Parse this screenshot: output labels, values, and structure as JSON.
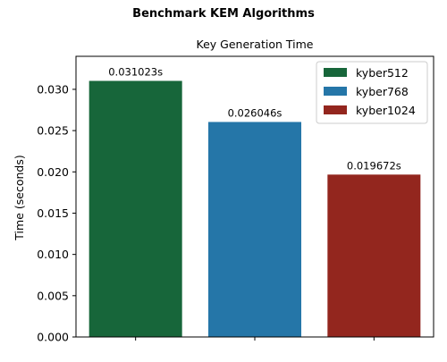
{
  "suptitle": "Benchmark KEM Algorithms",
  "chart_data": {
    "type": "bar",
    "title": "Key Generation Time",
    "xlabel": "",
    "ylabel": "Time (seconds)",
    "categories": [
      "kyber512",
      "kyber768",
      "kyber1024"
    ],
    "values": [
      0.031023,
      0.026046,
      0.019672
    ],
    "data_labels": [
      "0.031023s",
      "0.026046s",
      "0.019672s"
    ],
    "colors": [
      "#17663a",
      "#2576a8",
      "#93261e"
    ],
    "ylim": [
      0,
      0.034
    ],
    "yticks": [
      0.0,
      0.005,
      0.01,
      0.015,
      0.02,
      0.025,
      0.03
    ],
    "ytick_labels": [
      "0.000",
      "0.005",
      "0.010",
      "0.015",
      "0.020",
      "0.025",
      "0.030"
    ],
    "grid": false,
    "legend": {
      "position": "top-right",
      "entries": [
        "kyber512",
        "kyber768",
        "kyber1024"
      ]
    }
  }
}
